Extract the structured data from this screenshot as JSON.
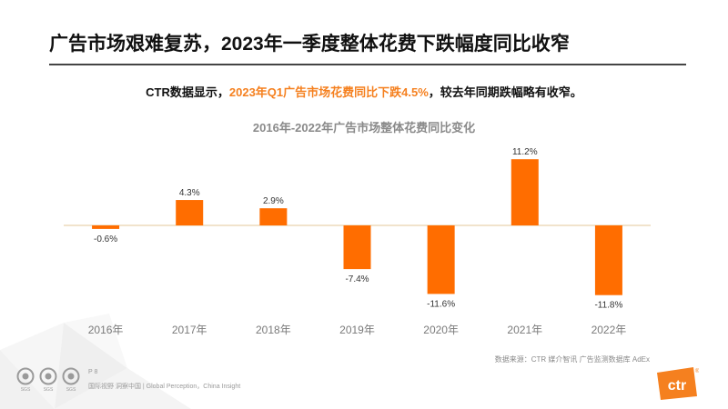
{
  "header": {
    "title": "广告市场艰难复苏，2023年一季度整体花费下跌幅度同比收窄"
  },
  "subtitle": {
    "prefix": "CTR数据显示，",
    "highlight": "2023年Q1广告市场花费同比下跌4.5%",
    "suffix": "，较去年同期跌幅略有收窄。"
  },
  "colors": {
    "accent": "#f5801f",
    "bar": "#ff6d00",
    "axis": "#e3c79a",
    "muted": "#8a8a8a"
  },
  "chart_data": {
    "type": "bar",
    "title": "2016年-2022年广告市场整体花费同比变化",
    "categories": [
      "2016年",
      "2017年",
      "2018年",
      "2019年",
      "2020年",
      "2021年",
      "2022年"
    ],
    "values": [
      -0.6,
      4.3,
      2.9,
      -7.4,
      -11.6,
      11.2,
      -11.8
    ],
    "labels": [
      "-0.6%",
      "4.3%",
      "2.9%",
      "-7.4%",
      "-11.6%",
      "11.2%",
      "-11.8%"
    ],
    "unit": "%",
    "xlabel": "",
    "ylabel": "",
    "grid": false,
    "legend": "none"
  },
  "source": "数据来源：CTR 媒介智讯 广告监测数据库 AdEx",
  "footer": {
    "page": "P 8",
    "tagline": "国际视野  洞察中国 |  Global Perception，China Insight",
    "cert_labels": [
      "SGS",
      "SGS",
      "SGS"
    ],
    "brand": "ctr",
    "brand_mark": "®"
  }
}
